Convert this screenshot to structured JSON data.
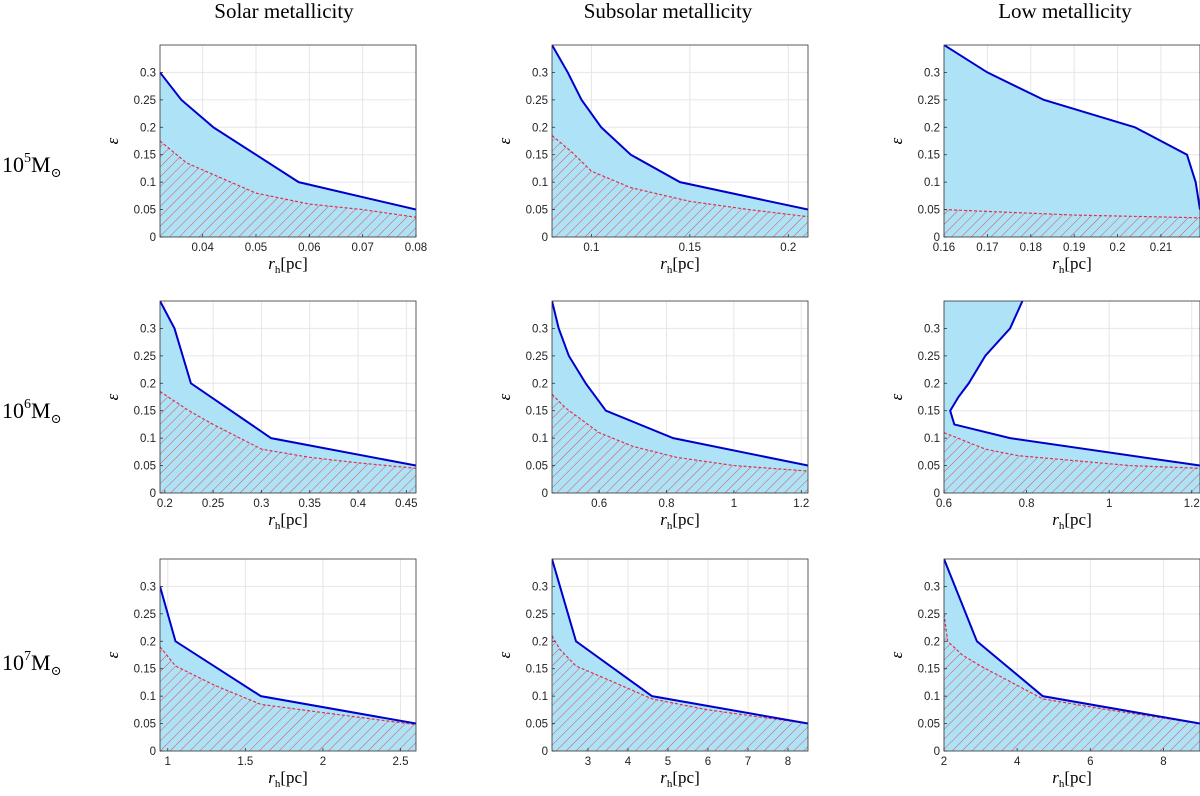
{
  "column_titles": [
    "Solar metallicity",
    "Subsolar metallicity",
    "Low metallicity"
  ],
  "row_labels": [
    {
      "base": "10",
      "exp": "5",
      "unit": "M",
      "sub": "⊙"
    },
    {
      "base": "10",
      "exp": "6",
      "unit": "M",
      "sub": "⊙"
    },
    {
      "base": "10",
      "exp": "7",
      "unit": "M",
      "sub": "⊙"
    }
  ],
  "axis_labels": {
    "x_sym": "r",
    "x_sub": "h",
    "x_unit": "[pc]",
    "y": "ε"
  },
  "colors": {
    "fill": "#aee3f7",
    "line": "#0000cd",
    "hatch": "#d9534f",
    "dashed": "#e0304f",
    "grid": "#e6e6e6",
    "axis": "#333333"
  },
  "chart_data": [
    {
      "type": "area",
      "row": 0,
      "col": 0,
      "xlim": [
        0.032,
        0.08
      ],
      "ylim": [
        0,
        0.35
      ],
      "xticks": [
        0.04,
        0.05,
        0.06,
        0.07,
        0.08
      ],
      "xtick_labels": [
        "0.04",
        "0.05",
        "0.06",
        "0.07",
        "0.08"
      ],
      "yticks": [
        0,
        0.05,
        0.1,
        0.15,
        0.2,
        0.25,
        0.3
      ],
      "ytick_labels": [
        "0",
        "0.05",
        "0.1",
        "0.15",
        "0.2",
        "0.25",
        "0.3"
      ],
      "upper": [
        [
          0.032,
          0.3
        ],
        [
          0.036,
          0.25
        ],
        [
          0.042,
          0.2
        ],
        [
          0.05,
          0.15
        ],
        [
          0.058,
          0.1
        ],
        [
          0.08,
          0.05
        ]
      ],
      "lower": [
        [
          0.032,
          0.175
        ],
        [
          0.037,
          0.135
        ],
        [
          0.05,
          0.08
        ],
        [
          0.06,
          0.06
        ],
        [
          0.07,
          0.05
        ],
        [
          0.08,
          0.036
        ]
      ]
    },
    {
      "type": "area",
      "row": 0,
      "col": 1,
      "xlim": [
        0.08,
        0.21
      ],
      "ylim": [
        0,
        0.35
      ],
      "xticks": [
        0.1,
        0.15,
        0.2
      ],
      "xtick_labels": [
        "0.1",
        "0.15",
        "0.2"
      ],
      "yticks": [
        0,
        0.05,
        0.1,
        0.15,
        0.2,
        0.25,
        0.3
      ],
      "ytick_labels": [
        "0",
        "0.05",
        "0.1",
        "0.15",
        "0.2",
        "0.25",
        "0.3"
      ],
      "upper": [
        [
          0.08,
          0.35
        ],
        [
          0.088,
          0.3
        ],
        [
          0.095,
          0.25
        ],
        [
          0.105,
          0.2
        ],
        [
          0.12,
          0.15
        ],
        [
          0.145,
          0.1
        ],
        [
          0.21,
          0.05
        ]
      ],
      "lower": [
        [
          0.08,
          0.185
        ],
        [
          0.09,
          0.155
        ],
        [
          0.1,
          0.12
        ],
        [
          0.12,
          0.09
        ],
        [
          0.15,
          0.065
        ],
        [
          0.18,
          0.05
        ],
        [
          0.21,
          0.037
        ]
      ]
    },
    {
      "type": "area",
      "row": 0,
      "col": 2,
      "xlim": [
        0.16,
        0.219
      ],
      "ylim": [
        0,
        0.35
      ],
      "xticks": [
        0.16,
        0.17,
        0.18,
        0.19,
        0.2,
        0.21
      ],
      "xtick_labels": [
        "0.16",
        "0.17",
        "0.18",
        "0.19",
        "0.2",
        "0.21"
      ],
      "yticks": [
        0,
        0.05,
        0.1,
        0.15,
        0.2,
        0.25,
        0.3
      ],
      "ytick_labels": [
        "0",
        "0.05",
        "0.1",
        "0.15",
        "0.2",
        "0.25",
        "0.3"
      ],
      "upper": [
        [
          0.16,
          0.35
        ],
        [
          0.17,
          0.3
        ],
        [
          0.183,
          0.25
        ],
        [
          0.204,
          0.2
        ],
        [
          0.216,
          0.15
        ],
        [
          0.218,
          0.1
        ],
        [
          0.219,
          0.05
        ]
      ],
      "lower": [
        [
          0.16,
          0.05
        ],
        [
          0.19,
          0.04
        ],
        [
          0.219,
          0.035
        ]
      ]
    },
    {
      "type": "area",
      "row": 1,
      "col": 0,
      "xlim": [
        0.195,
        0.46
      ],
      "ylim": [
        0,
        0.35
      ],
      "xticks": [
        0.2,
        0.25,
        0.3,
        0.35,
        0.4,
        0.45
      ],
      "xtick_labels": [
        "0.2",
        "0.25",
        "0.3",
        "0.35",
        "0.4",
        "0.45"
      ],
      "yticks": [
        0,
        0.05,
        0.1,
        0.15,
        0.2,
        0.25,
        0.3
      ],
      "ytick_labels": [
        "0",
        "0.05",
        "0.1",
        "0.15",
        "0.2",
        "0.25",
        "0.3"
      ],
      "upper": [
        [
          0.195,
          0.35
        ],
        [
          0.21,
          0.3
        ],
        [
          0.227,
          0.2
        ],
        [
          0.31,
          0.1
        ],
        [
          0.46,
          0.05
        ]
      ],
      "lower": [
        [
          0.195,
          0.185
        ],
        [
          0.225,
          0.15
        ],
        [
          0.25,
          0.125
        ],
        [
          0.3,
          0.08
        ],
        [
          0.35,
          0.065
        ],
        [
          0.4,
          0.055
        ],
        [
          0.46,
          0.045
        ]
      ]
    },
    {
      "type": "area",
      "row": 1,
      "col": 1,
      "xlim": [
        0.46,
        1.22
      ],
      "ylim": [
        0,
        0.35
      ],
      "xticks": [
        0.6,
        0.8,
        1,
        1.2
      ],
      "xtick_labels": [
        "0.6",
        "0.8",
        "1",
        "1.2"
      ],
      "yticks": [
        0,
        0.05,
        0.1,
        0.15,
        0.2,
        0.25,
        0.3
      ],
      "ytick_labels": [
        "0",
        "0.05",
        "0.1",
        "0.15",
        "0.2",
        "0.25",
        "0.3"
      ],
      "upper": [
        [
          0.46,
          0.35
        ],
        [
          0.48,
          0.3
        ],
        [
          0.51,
          0.25
        ],
        [
          0.56,
          0.2
        ],
        [
          0.62,
          0.15
        ],
        [
          0.82,
          0.1
        ],
        [
          1.22,
          0.05
        ]
      ],
      "lower": [
        [
          0.46,
          0.18
        ],
        [
          0.5,
          0.155
        ],
        [
          0.6,
          0.11
        ],
        [
          0.7,
          0.085
        ],
        [
          0.83,
          0.065
        ],
        [
          1.0,
          0.05
        ],
        [
          1.22,
          0.04
        ]
      ]
    },
    {
      "type": "area",
      "row": 1,
      "col": 2,
      "xlim": [
        0.6,
        1.22
      ],
      "ylim": [
        0,
        0.35
      ],
      "xticks": [
        0.6,
        0.8,
        1,
        1.2
      ],
      "xtick_labels": [
        "0.6",
        "0.8",
        "1",
        "1.2"
      ],
      "yticks": [
        0,
        0.05,
        0.1,
        0.15,
        0.2,
        0.25,
        0.3
      ],
      "ytick_labels": [
        "0",
        "0.05",
        "0.1",
        "0.15",
        "0.2",
        "0.25",
        "0.3"
      ],
      "upper": [
        [
          0.79,
          0.35
        ],
        [
          0.76,
          0.3
        ],
        [
          0.7,
          0.25
        ],
        [
          0.66,
          0.2
        ],
        [
          0.635,
          0.175
        ],
        [
          0.615,
          0.15
        ],
        [
          0.625,
          0.125
        ],
        [
          0.76,
          0.1
        ],
        [
          1.22,
          0.05
        ]
      ],
      "lower": [
        [
          0.6,
          0.11
        ],
        [
          0.65,
          0.095
        ],
        [
          0.7,
          0.08
        ],
        [
          0.78,
          0.068
        ],
        [
          0.9,
          0.06
        ],
        [
          1.05,
          0.05
        ],
        [
          1.22,
          0.045
        ]
      ]
    },
    {
      "type": "area",
      "row": 2,
      "col": 0,
      "xlim": [
        0.95,
        2.6
      ],
      "ylim": [
        0,
        0.35
      ],
      "xticks": [
        1,
        1.5,
        2,
        2.5
      ],
      "xtick_labels": [
        "1",
        "1.5",
        "2",
        "2.5"
      ],
      "yticks": [
        0,
        0.05,
        0.1,
        0.15,
        0.2,
        0.25,
        0.3
      ],
      "ytick_labels": [
        "0",
        "0.05",
        "0.1",
        "0.15",
        "0.2",
        "0.25",
        "0.3"
      ],
      "upper": [
        [
          0.95,
          0.3
        ],
        [
          1.05,
          0.2
        ],
        [
          1.6,
          0.1
        ],
        [
          2.6,
          0.05
        ]
      ],
      "lower": [
        [
          0.95,
          0.19
        ],
        [
          1.05,
          0.155
        ],
        [
          1.3,
          0.12
        ],
        [
          1.6,
          0.085
        ],
        [
          2.0,
          0.07
        ],
        [
          2.6,
          0.048
        ]
      ]
    },
    {
      "type": "area",
      "row": 2,
      "col": 1,
      "xlim": [
        2.1,
        8.5
      ],
      "ylim": [
        0,
        0.35
      ],
      "xticks": [
        3,
        4,
        5,
        6,
        7,
        8
      ],
      "xtick_labels": [
        "3",
        "4",
        "5",
        "6",
        "7",
        "8"
      ],
      "yticks": [
        0,
        0.05,
        0.1,
        0.15,
        0.2,
        0.25,
        0.3
      ],
      "ytick_labels": [
        "0",
        "0.05",
        "0.1",
        "0.15",
        "0.2",
        "0.25",
        "0.3"
      ],
      "upper": [
        [
          2.1,
          0.35
        ],
        [
          2.3,
          0.3
        ],
        [
          2.7,
          0.2
        ],
        [
          4.6,
          0.1
        ],
        [
          8.5,
          0.05
        ]
      ],
      "lower": [
        [
          2.1,
          0.21
        ],
        [
          2.3,
          0.185
        ],
        [
          2.7,
          0.155
        ],
        [
          3.5,
          0.13
        ],
        [
          4.6,
          0.095
        ],
        [
          6.0,
          0.075
        ],
        [
          8.5,
          0.05
        ]
      ]
    },
    {
      "type": "area",
      "row": 2,
      "col": 2,
      "xlim": [
        2,
        9
      ],
      "ylim": [
        0,
        0.35
      ],
      "xticks": [
        2,
        4,
        6,
        8
      ],
      "xtick_labels": [
        "2",
        "4",
        "6",
        "8"
      ],
      "yticks": [
        0,
        0.05,
        0.1,
        0.15,
        0.2,
        0.25,
        0.3
      ],
      "ytick_labels": [
        "0",
        "0.05",
        "0.1",
        "0.15",
        "0.2",
        "0.25",
        "0.3"
      ],
      "upper": [
        [
          2,
          0.35
        ],
        [
          2.3,
          0.3
        ],
        [
          2.9,
          0.2
        ],
        [
          4.7,
          0.1
        ],
        [
          9,
          0.05
        ]
      ],
      "lower": [
        [
          2,
          0.25
        ],
        [
          2.1,
          0.2
        ],
        [
          2.5,
          0.175
        ],
        [
          3.0,
          0.155
        ],
        [
          4.7,
          0.095
        ],
        [
          6.5,
          0.075
        ],
        [
          9,
          0.05
        ]
      ]
    }
  ]
}
